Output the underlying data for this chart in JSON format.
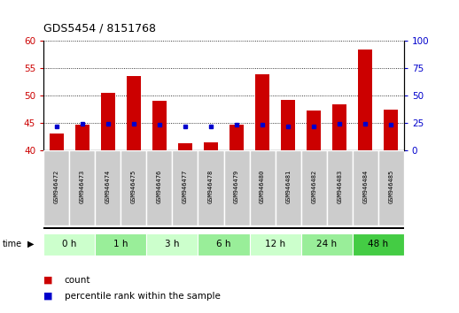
{
  "title": "GDS5454 / 8151768",
  "samples": [
    "GSM946472",
    "GSM946473",
    "GSM946474",
    "GSM946475",
    "GSM946476",
    "GSM946477",
    "GSM946478",
    "GSM946479",
    "GSM946480",
    "GSM946481",
    "GSM946482",
    "GSM946483",
    "GSM946484",
    "GSM946485"
  ],
  "counts": [
    43.1,
    44.6,
    50.4,
    53.6,
    49.0,
    41.2,
    41.5,
    44.7,
    53.8,
    49.2,
    47.3,
    48.4,
    58.4,
    47.4
  ],
  "percentile_ranks": [
    22,
    24,
    24,
    24,
    23,
    22,
    22,
    23,
    23,
    22,
    22,
    24,
    24,
    23
  ],
  "time_groups": [
    {
      "label": "0 h",
      "start": 0,
      "end": 2,
      "color": "#ccffcc"
    },
    {
      "label": "1 h",
      "start": 2,
      "end": 4,
      "color": "#99ee99"
    },
    {
      "label": "3 h",
      "start": 4,
      "end": 6,
      "color": "#ccffcc"
    },
    {
      "label": "6 h",
      "start": 6,
      "end": 8,
      "color": "#99ee99"
    },
    {
      "label": "12 h",
      "start": 8,
      "end": 10,
      "color": "#ccffcc"
    },
    {
      "label": "24 h",
      "start": 10,
      "end": 12,
      "color": "#99ee99"
    },
    {
      "label": "48 h",
      "start": 12,
      "end": 14,
      "color": "#44cc44"
    }
  ],
  "ylim_left": [
    40,
    60
  ],
  "ylim_right": [
    0,
    100
  ],
  "yticks_left": [
    40,
    45,
    50,
    55,
    60
  ],
  "yticks_right": [
    0,
    25,
    50,
    75,
    100
  ],
  "bar_color": "#cc0000",
  "dot_color": "#0000cc",
  "bar_width": 0.55,
  "sample_bg_even": "#dddddd",
  "sample_bg_odd": "#cccccc",
  "legend_count_color": "#cc0000",
  "legend_pct_color": "#0000cc"
}
